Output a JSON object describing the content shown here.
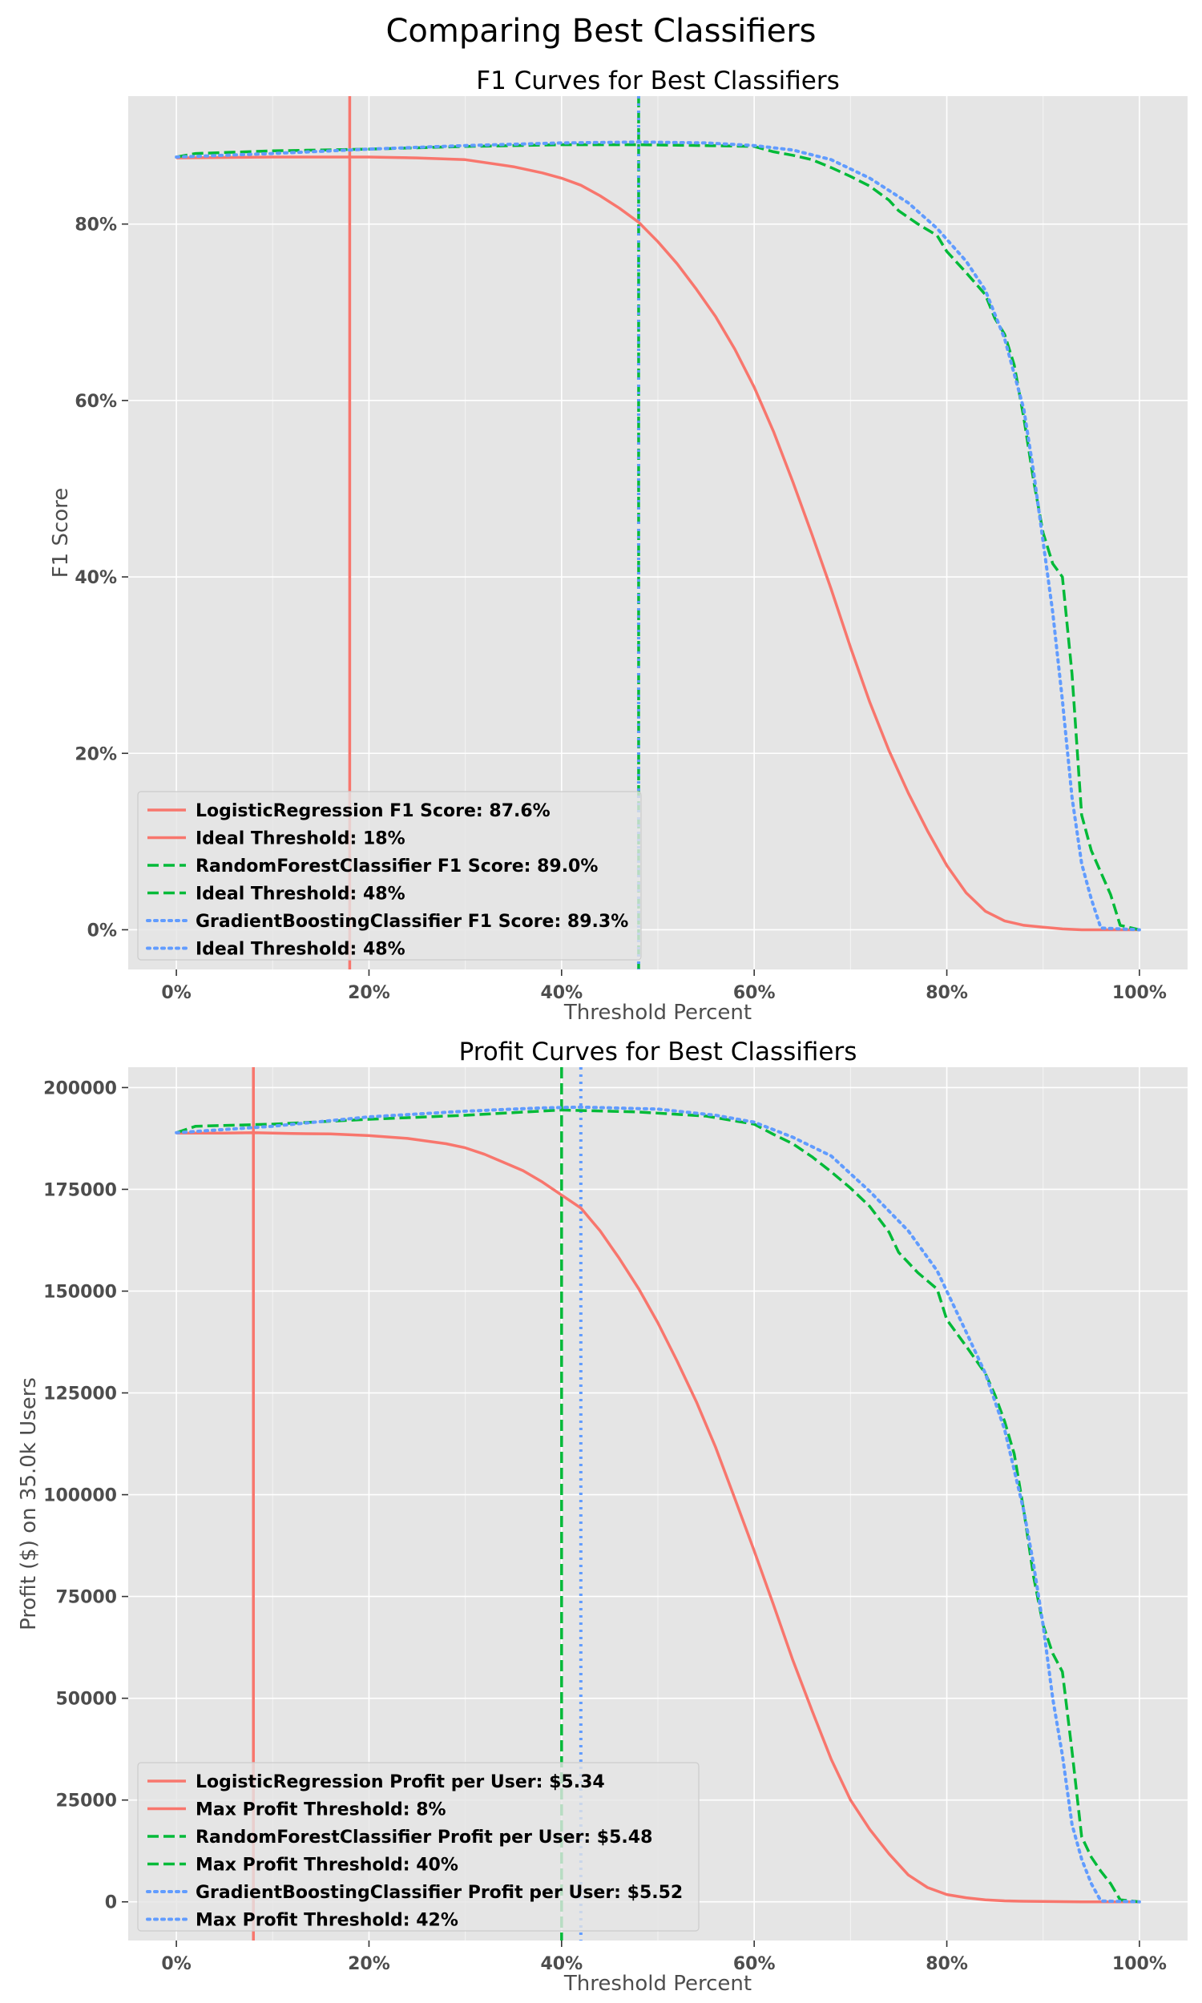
{
  "figure_title": "Comparing Best Classifiers",
  "colors": {
    "logistic": "#F8766D",
    "forest": "#00BA38",
    "boosting": "#619CFF",
    "panel_bg": "#E5E5E5",
    "grid": "#FFFFFF",
    "tick_text": "#4D4D4D"
  },
  "chart_data": [
    {
      "type": "line",
      "title": "F1 Curves for Best Classifiers",
      "xlabel": "Threshold Percent",
      "ylabel": "F1 Score",
      "xlim": [
        -5,
        105
      ],
      "ylim": [
        -4.5,
        94.5
      ],
      "grid": true,
      "legend_position": "lower-left",
      "xticks": [
        {
          "v": 0,
          "label": "0%"
        },
        {
          "v": 20,
          "label": "20%"
        },
        {
          "v": 40,
          "label": "40%"
        },
        {
          "v": 60,
          "label": "60%"
        },
        {
          "v": 80,
          "label": "80%"
        },
        {
          "v": 100,
          "label": "100%"
        }
      ],
      "yticks": [
        {
          "v": 0,
          "label": "0%"
        },
        {
          "v": 20,
          "label": "20%"
        },
        {
          "v": 40,
          "label": "40%"
        },
        {
          "v": 60,
          "label": "60%"
        },
        {
          "v": 80,
          "label": "80%"
        }
      ],
      "series": [
        {
          "key": "logistic",
          "style": "solid",
          "x": [
            0,
            10,
            20,
            25,
            30,
            35,
            38,
            40,
            42,
            44,
            46,
            48,
            50,
            52,
            54,
            56,
            58,
            60,
            62,
            64,
            66,
            68,
            70,
            72,
            74,
            76,
            78,
            80,
            82,
            84,
            86,
            88,
            90,
            92,
            94,
            96,
            100
          ],
          "y": [
            87.5,
            87.6,
            87.6,
            87.5,
            87.3,
            86.5,
            85.8,
            85.2,
            84.4,
            83.2,
            81.8,
            80.2,
            78.0,
            75.5,
            72.6,
            69.5,
            65.8,
            61.5,
            56.5,
            50.8,
            44.8,
            38.6,
            32.0,
            25.8,
            20.3,
            15.5,
            11.2,
            7.3,
            4.2,
            2.1,
            1.0,
            0.5,
            0.3,
            0.1,
            0.0,
            0.0,
            0.0
          ]
        },
        {
          "key": "forest",
          "style": "dashed",
          "x": [
            0,
            2,
            10,
            20,
            30,
            40,
            48,
            55,
            60,
            62,
            64,
            66,
            68,
            70,
            72,
            74,
            75,
            77,
            79,
            80,
            82,
            84,
            85,
            86,
            87,
            88,
            89,
            90,
            91,
            92,
            93,
            94,
            95,
            96,
            97,
            98,
            100
          ],
          "y": [
            87.6,
            88.0,
            88.3,
            88.5,
            88.8,
            89.0,
            89.0,
            88.9,
            88.8,
            88.2,
            87.8,
            87.3,
            86.4,
            85.4,
            84.3,
            82.7,
            81.5,
            80.0,
            78.7,
            76.9,
            74.5,
            72.0,
            69.3,
            67.5,
            64.0,
            58.0,
            51.0,
            45.0,
            41.5,
            40.0,
            29.0,
            13.0,
            9.0,
            6.5,
            4.0,
            0.5,
            0.0
          ]
        },
        {
          "key": "boosting",
          "style": "dotted",
          "x": [
            0,
            10,
            20,
            30,
            40,
            48,
            55,
            60,
            64,
            68,
            72,
            76,
            79,
            82,
            84,
            86,
            88,
            89,
            90,
            91,
            92,
            93,
            94,
            95,
            96,
            100
          ],
          "y": [
            87.6,
            88.0,
            88.5,
            88.9,
            89.2,
            89.3,
            89.2,
            88.9,
            88.4,
            87.3,
            85.2,
            82.4,
            79.5,
            75.8,
            72.5,
            67.0,
            59.0,
            52.0,
            44.0,
            36.0,
            26.0,
            15.0,
            7.5,
            3.5,
            0.2,
            0.0
          ]
        }
      ],
      "threshold_lines": [
        {
          "key": "logistic",
          "style": "solid",
          "x": 18
        },
        {
          "key": "forest",
          "style": "dashed",
          "x": 48
        },
        {
          "key": "boosting",
          "style": "dotted",
          "x": 48
        }
      ],
      "legend": [
        {
          "key": "logistic",
          "style": "solid",
          "label": "LogisticRegression F1 Score: 87.6%"
        },
        {
          "key": "logistic",
          "style": "solid",
          "label": "Ideal Threshold: 18%"
        },
        {
          "key": "forest",
          "style": "dashed",
          "label": "RandomForestClassifier F1 Score: 89.0%"
        },
        {
          "key": "forest",
          "style": "dashed",
          "label": "Ideal Threshold: 48%"
        },
        {
          "key": "boosting",
          "style": "dotted",
          "label": "GradientBoostingClassifier F1 Score: 89.3%"
        },
        {
          "key": "boosting",
          "style": "dotted",
          "label": "Ideal Threshold: 48%"
        }
      ]
    },
    {
      "type": "line",
      "title": "Profit Curves for Best Classifiers",
      "xlabel": "Threshold Percent",
      "ylabel": "Profit ($) on 35.0k Users",
      "xlim": [
        -5,
        105
      ],
      "ylim": [
        -9500,
        205000
      ],
      "grid": true,
      "legend_position": "lower-left",
      "xticks": [
        {
          "v": 0,
          "label": "0%"
        },
        {
          "v": 20,
          "label": "20%"
        },
        {
          "v": 40,
          "label": "40%"
        },
        {
          "v": 60,
          "label": "60%"
        },
        {
          "v": 80,
          "label": "80%"
        },
        {
          "v": 100,
          "label": "100%"
        }
      ],
      "yticks": [
        {
          "v": 0,
          "label": "0"
        },
        {
          "v": 25000,
          "label": "25000"
        },
        {
          "v": 50000,
          "label": "50000"
        },
        {
          "v": 75000,
          "label": "75000"
        },
        {
          "v": 100000,
          "label": "100000"
        },
        {
          "v": 125000,
          "label": "125000"
        },
        {
          "v": 150000,
          "label": "150000"
        },
        {
          "v": 175000,
          "label": "175000"
        },
        {
          "v": 200000,
          "label": "200000"
        }
      ],
      "series": [
        {
          "key": "logistic",
          "style": "solid",
          "x": [
            0,
            5,
            8,
            12,
            16,
            20,
            24,
            28,
            30,
            32,
            34,
            36,
            38,
            40,
            42,
            44,
            46,
            48,
            50,
            52,
            54,
            56,
            58,
            60,
            62,
            64,
            66,
            68,
            70,
            72,
            74,
            76,
            78,
            80,
            82,
            84,
            86,
            88,
            90,
            92,
            94,
            100
          ],
          "y": [
            188800,
            188800,
            188900,
            188700,
            188600,
            188200,
            187500,
            186200,
            185200,
            183600,
            181600,
            179600,
            176800,
            173600,
            170400,
            164800,
            158000,
            150600,
            142200,
            132800,
            122800,
            111600,
            99000,
            86200,
            73000,
            59400,
            47000,
            35000,
            25000,
            17800,
            11800,
            6600,
            3500,
            1800,
            1000,
            500,
            250,
            150,
            100,
            50,
            0,
            0
          ]
        },
        {
          "key": "forest",
          "style": "dashed",
          "x": [
            0,
            2,
            10,
            20,
            30,
            40,
            48,
            55,
            60,
            62,
            64,
            66,
            68,
            70,
            72,
            74,
            75,
            77,
            79,
            80,
            82,
            84,
            85,
            86,
            87,
            88,
            89,
            90,
            91,
            92,
            93,
            94,
            95,
            96,
            97,
            98,
            100
          ],
          "y": [
            188900,
            190500,
            191000,
            192200,
            193200,
            194500,
            194000,
            193000,
            191000,
            188500,
            186200,
            183000,
            179300,
            175300,
            170800,
            164500,
            159500,
            154500,
            150500,
            143000,
            136500,
            129800,
            124500,
            118000,
            110000,
            96000,
            80000,
            68000,
            61000,
            56500,
            37000,
            16000,
            11000,
            7500,
            4500,
            500,
            0
          ]
        },
        {
          "key": "boosting",
          "style": "dotted",
          "x": [
            0,
            10,
            20,
            30,
            38,
            42,
            50,
            56,
            60,
            64,
            68,
            72,
            76,
            79,
            82,
            84,
            86,
            88,
            89,
            90,
            91,
            92,
            93,
            94,
            95,
            96,
            100
          ],
          "y": [
            188900,
            190500,
            192800,
            194200,
            195000,
            195200,
            194700,
            193200,
            191500,
            187800,
            183200,
            174500,
            164800,
            155000,
            140000,
            129800,
            116000,
            96000,
            83000,
            68000,
            50000,
            36000,
            19000,
            10500,
            4500,
            200,
            0
          ]
        }
      ],
      "threshold_lines": [
        {
          "key": "logistic",
          "style": "solid",
          "x": 8
        },
        {
          "key": "forest",
          "style": "dashed",
          "x": 40
        },
        {
          "key": "boosting",
          "style": "dotted",
          "x": 42
        }
      ],
      "legend": [
        {
          "key": "logistic",
          "style": "solid",
          "label": "LogisticRegression Profit per User: $5.34"
        },
        {
          "key": "logistic",
          "style": "solid",
          "label": "Max Profit Threshold: 8%"
        },
        {
          "key": "forest",
          "style": "dashed",
          "label": "RandomForestClassifier Profit per User: $5.48"
        },
        {
          "key": "forest",
          "style": "dashed",
          "label": "Max Profit Threshold: 40%"
        },
        {
          "key": "boosting",
          "style": "dotted",
          "label": "GradientBoostingClassifier Profit per User: $5.52"
        },
        {
          "key": "boosting",
          "style": "dotted",
          "label": "Max Profit Threshold: 42%"
        }
      ]
    }
  ]
}
